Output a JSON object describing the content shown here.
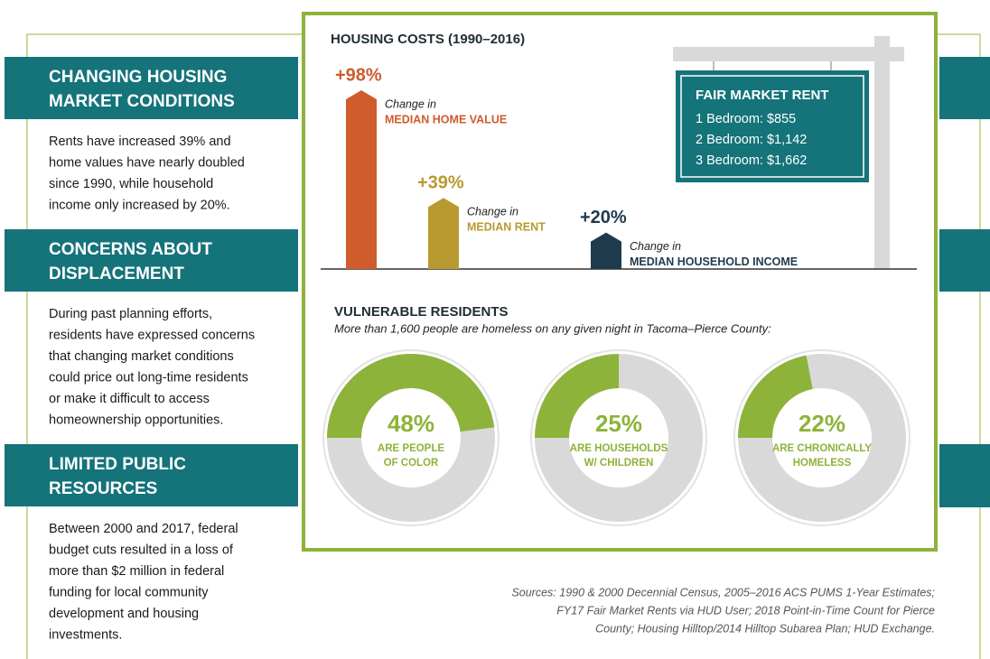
{
  "sidebar": [
    {
      "title": [
        "CHANGING HOUSING",
        "MARKET CONDITIONS"
      ],
      "text": [
        "Rents have increased 39% and",
        "home values have nearly doubled",
        "since 1990, while household",
        "income only increased by 20%."
      ]
    },
    {
      "title": [
        "CONCERNS ABOUT",
        "DISPLACEMENT"
      ],
      "text": [
        "During past planning efforts,",
        "residents have expressed concerns",
        "that changing market conditions",
        "could price out long-time residents",
        "or make it difficult to access",
        "homeownership opportunities."
      ]
    },
    {
      "title": [
        "LIMITED PUBLIC",
        "RESOURCES"
      ],
      "text": [
        "Between 2000 and 2017, federal",
        "budget cuts resulted in a loss of",
        "more than $2 million in federal",
        "funding for local community",
        "development and housing",
        "investments."
      ]
    }
  ],
  "chart_data": [
    {
      "type": "bar",
      "title": "HOUSING COSTS (1990–2016)",
      "categories": [
        "MEDIAN HOME VALUE",
        "MEDIAN RENT",
        "MEDIAN HOUSEHOLD INCOME"
      ],
      "category_captions": [
        "Change in",
        "Change in",
        "Change in"
      ],
      "values": [
        98,
        39,
        20
      ],
      "value_labels": [
        "+98%",
        "+39%",
        "+20%"
      ],
      "colors": [
        "#cf5c2c",
        "#b99a30",
        "#1f3a4d"
      ]
    },
    {
      "type": "donut",
      "title": "VULNERABLE RESIDENTS",
      "subtitle": "More than 1,600 people are homeless on any given night in Tacoma–Pierce County:",
      "categories": [
        [
          "ARE PEOPLE",
          "OF COLOR"
        ],
        [
          "ARE HOUSEHOLDS",
          "W/ CHILDREN"
        ],
        [
          "ARE CHRONICALLY",
          "HOMELESS"
        ]
      ],
      "values": [
        48,
        25,
        22
      ],
      "value_labels": [
        "48%",
        "25%",
        "22%"
      ],
      "color": "#8db33a"
    }
  ],
  "fair_market_rent": {
    "title": "FAIR MARKET RENT",
    "items": [
      "1 Bedroom: $855",
      "2 Bedroom: $1,142",
      "3 Bedroom: $1,662"
    ]
  },
  "sources": [
    "Sources: 1990 & 2000 Decennial Census, 2005–2016 ACS PUMS 1-Year Estimates;",
    "FY17 Fair Market Rents via HUD User; 2018 Point-in-Time Count for Pierce",
    "County; Housing Hilltop/2014 Hilltop Subarea Plan; HUD Exchange."
  ]
}
